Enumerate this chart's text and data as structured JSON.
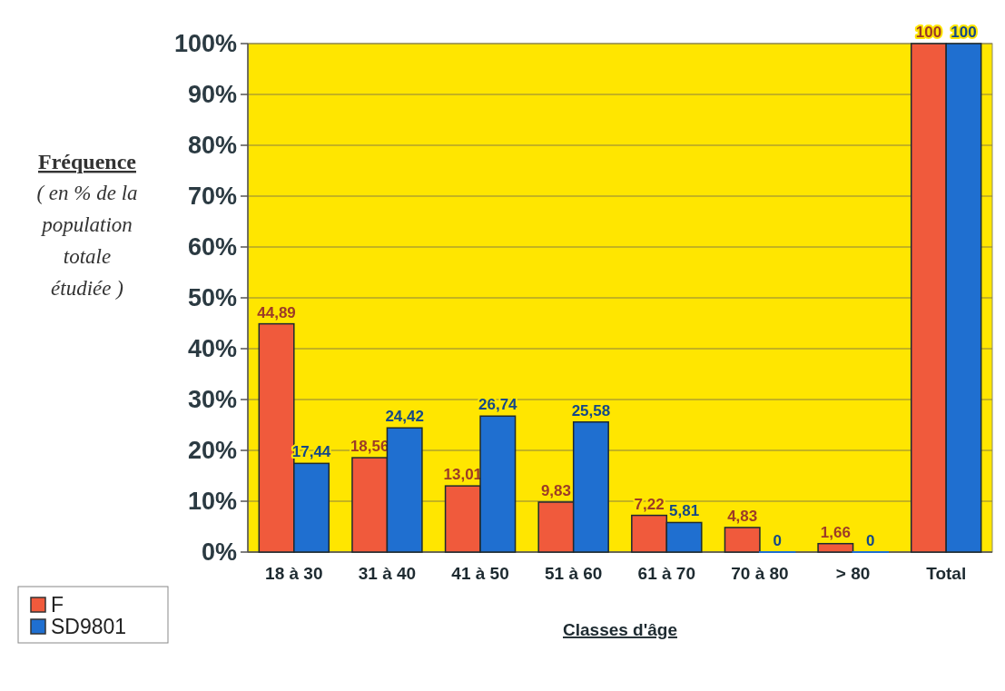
{
  "chart_data": {
    "type": "bar",
    "xlabel": "Classes d'âge",
    "ylabel": "Fréquence ( en % de la population totale étudiée )",
    "categories": [
      "18 à 30",
      "31 à 40",
      "41 à 50",
      "51 à 60",
      "61 à 70",
      "70 à 80",
      "> 80",
      "Total"
    ],
    "series": [
      {
        "name": "F",
        "color": "#f05a3c",
        "values": [
          44.89,
          18.56,
          13.01,
          9.83,
          7.22,
          4.83,
          1.66,
          100
        ],
        "value_labels": [
          "44,89",
          "18,56",
          "13,01",
          "9,83",
          "7,22",
          "4,83",
          "1,66",
          "100"
        ]
      },
      {
        "name": "SD9801",
        "color": "#1f6fd0",
        "values": [
          17.44,
          24.42,
          26.74,
          25.58,
          5.81,
          0,
          0,
          100
        ],
        "value_labels": [
          "17,44",
          "24,42",
          "26,74",
          "25,58",
          "5,81",
          "0",
          "0",
          "100"
        ]
      }
    ],
    "ylim": [
      0,
      100
    ],
    "yticks": [
      {
        "value": 0,
        "label": "0%"
      },
      {
        "value": 10,
        "label": "10%"
      },
      {
        "value": 20,
        "label": "20%"
      },
      {
        "value": 30,
        "label": "30%"
      },
      {
        "value": 40,
        "label": "40%"
      },
      {
        "value": 50,
        "label": "50%"
      },
      {
        "value": 60,
        "label": "60%"
      },
      {
        "value": 70,
        "label": "70%"
      },
      {
        "value": 80,
        "label": "80%"
      },
      {
        "value": 90,
        "label": "90%"
      },
      {
        "value": 100,
        "label": "100%"
      }
    ],
    "grid": "y",
    "legend": "bottom left"
  }
}
